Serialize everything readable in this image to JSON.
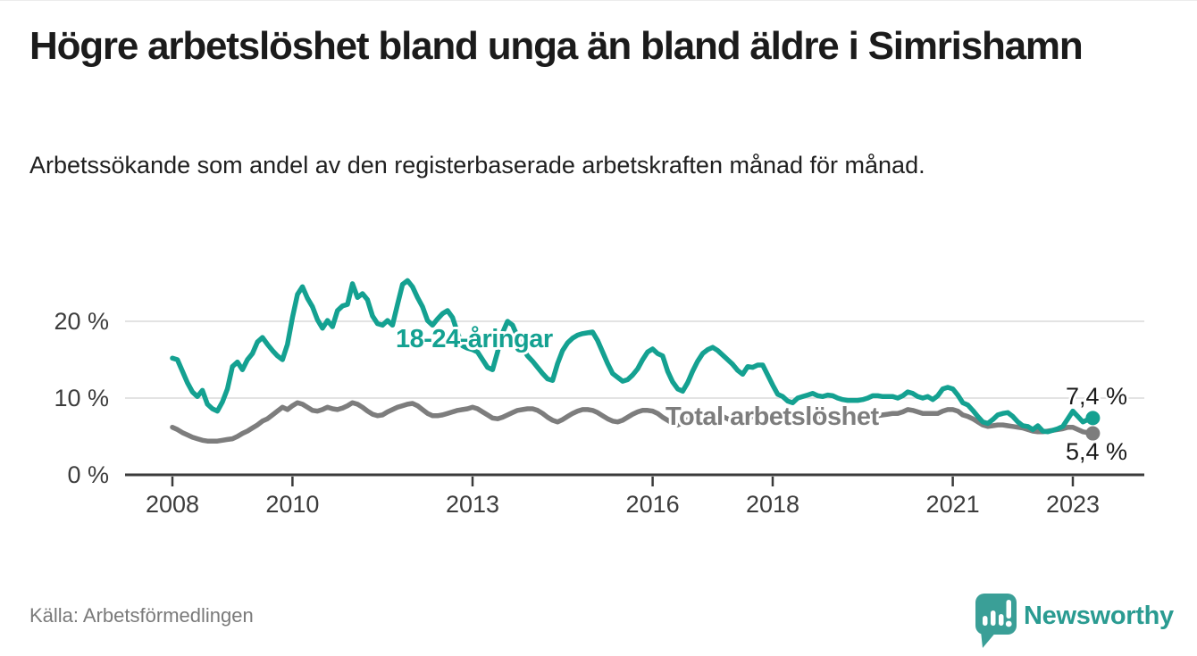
{
  "header": {
    "title": "Högre arbetslöshet bland unga än bland äldre i Simrishamn",
    "subtitle": "Arbetssökande som andel av den registerbaserade arbetskraften månad för månad."
  },
  "chart_data": {
    "type": "line",
    "title": "Högre arbetslöshet bland unga än bland äldre i Simrishamn",
    "xlabel": "",
    "ylabel": "Arbetssökande som andel av den registerbaserade arbetskraften",
    "x_start": 2008,
    "x_step_months": 1,
    "x_end": 2023.333,
    "ylim": [
      0,
      26
    ],
    "grid": "horizontal",
    "legend_position": "inline-labels",
    "x_axis": {
      "ticks": [
        2008,
        2010,
        2013,
        2016,
        2018,
        2021,
        2023
      ]
    },
    "y_axis": {
      "ticks": [
        {
          "value": 0,
          "label": "0 %"
        },
        {
          "value": 10,
          "label": "10 %"
        },
        {
          "value": 20,
          "label": "20 %"
        }
      ]
    },
    "series": [
      {
        "name": "18-24-åringar",
        "color": "#14a191",
        "end_label": "7,4 %",
        "last_value": 7.4,
        "values": [
          15.2,
          15.0,
          13.5,
          12.0,
          10.8,
          10.2,
          11.0,
          9.2,
          8.6,
          8.3,
          9.5,
          11.2,
          14.1,
          14.7,
          13.7,
          15.0,
          15.8,
          17.3,
          17.9,
          17.0,
          16.2,
          15.5,
          15.0,
          17.0,
          20.5,
          23.5,
          24.5,
          23.0,
          21.9,
          20.2,
          19.1,
          20.1,
          19.3,
          21.4,
          22.0,
          22.2,
          24.9,
          23.1,
          23.6,
          22.8,
          20.7,
          19.7,
          19.5,
          20.1,
          19.5,
          22.2,
          24.8,
          25.3,
          24.5,
          23.1,
          21.9,
          20.1,
          19.5,
          20.3,
          21.0,
          21.4,
          20.5,
          18.5,
          16.8,
          16.5,
          16.3,
          16.0,
          15.0,
          14.0,
          13.7,
          16.0,
          18.5,
          20.0,
          19.5,
          18.0,
          16.5,
          15.5,
          14.8,
          14.0,
          13.2,
          12.5,
          12.3,
          14.5,
          16.2,
          17.2,
          17.8,
          18.2,
          18.4,
          18.5,
          18.6,
          17.5,
          16.0,
          14.5,
          13.2,
          12.7,
          12.2,
          12.4,
          13.0,
          13.8,
          15.0,
          16.0,
          16.4,
          15.8,
          15.5,
          13.5,
          12.1,
          11.2,
          10.9,
          12.0,
          13.5,
          14.8,
          15.8,
          16.3,
          16.6,
          16.2,
          15.6,
          15.0,
          14.4,
          13.6,
          13.1,
          14.1,
          14.0,
          14.3,
          14.3,
          13.0,
          11.7,
          10.5,
          10.2,
          9.6,
          9.4,
          10.0,
          10.2,
          10.4,
          10.6,
          10.3,
          10.2,
          10.4,
          10.3,
          10.0,
          9.8,
          9.7,
          9.7,
          9.7,
          9.8,
          10.0,
          10.3,
          10.3,
          10.2,
          10.2,
          10.2,
          10.0,
          10.3,
          10.8,
          10.6,
          10.2,
          10.0,
          10.2,
          9.8,
          10.3,
          11.2,
          11.4,
          11.2,
          10.4,
          9.4,
          9.1,
          8.4,
          7.6,
          6.9,
          6.7,
          7.2,
          7.8,
          8.0,
          8.1,
          7.6,
          6.9,
          6.4,
          6.3,
          5.9,
          6.4,
          5.7,
          5.6,
          5.8,
          6.0,
          6.3,
          7.3,
          8.3,
          7.6,
          6.9,
          7.2,
          7.4
        ]
      },
      {
        "name": "Total arbetslöshet",
        "color": "#7d7d7d",
        "end_label": "5,4 %",
        "last_value": 5.4,
        "values": [
          6.2,
          5.9,
          5.5,
          5.2,
          4.9,
          4.7,
          4.5,
          4.4,
          4.4,
          4.4,
          4.5,
          4.6,
          4.7,
          5.0,
          5.4,
          5.7,
          6.1,
          6.5,
          7.0,
          7.3,
          7.8,
          8.3,
          8.8,
          8.5,
          9.0,
          9.4,
          9.2,
          8.8,
          8.4,
          8.3,
          8.5,
          8.8,
          8.6,
          8.5,
          8.7,
          9.0,
          9.4,
          9.2,
          8.8,
          8.3,
          7.9,
          7.7,
          7.8,
          8.2,
          8.5,
          8.8,
          9.0,
          9.2,
          9.3,
          9.0,
          8.5,
          8.0,
          7.7,
          7.7,
          7.8,
          8.0,
          8.2,
          8.4,
          8.5,
          8.6,
          8.8,
          8.6,
          8.2,
          7.8,
          7.4,
          7.3,
          7.5,
          7.8,
          8.1,
          8.4,
          8.5,
          8.6,
          8.6,
          8.4,
          8.0,
          7.5,
          7.1,
          6.9,
          7.2,
          7.6,
          8.0,
          8.3,
          8.5,
          8.5,
          8.4,
          8.1,
          7.7,
          7.3,
          7.0,
          6.9,
          7.1,
          7.5,
          7.9,
          8.2,
          8.4,
          8.4,
          8.3,
          8.0,
          7.5,
          7.1,
          6.7,
          6.5,
          6.8,
          7.2,
          7.5,
          7.8,
          7.9,
          8.0,
          8.0,
          7.9,
          7.6,
          7.3,
          7.0,
          6.9,
          7.1,
          7.4,
          7.6,
          7.8,
          7.9,
          8.0,
          8.0,
          7.9,
          7.6,
          7.3,
          7.0,
          6.8,
          7.0,
          7.3,
          7.5,
          7.6,
          7.7,
          7.8,
          7.8,
          7.7,
          7.5,
          7.3,
          7.1,
          7.0,
          7.2,
          7.4,
          7.6,
          7.7,
          7.8,
          7.9,
          8.0,
          8.0,
          8.2,
          8.5,
          8.4,
          8.2,
          8.0,
          8.0,
          8.0,
          8.0,
          8.3,
          8.5,
          8.5,
          8.3,
          7.8,
          7.6,
          7.3,
          6.9,
          6.5,
          6.3,
          6.4,
          6.5,
          6.5,
          6.4,
          6.3,
          6.2,
          6.1,
          5.9,
          5.7,
          5.6,
          5.6,
          5.7,
          5.8,
          5.9,
          6.0,
          6.2,
          6.2,
          5.9,
          5.6,
          5.5,
          5.4
        ]
      }
    ]
  },
  "footer": {
    "source": "Källa: Arbetsförmedlingen",
    "logo_text": "Newsworthy",
    "logo_color": "#2a9b91",
    "logo_icon_color": "#3a9f97"
  }
}
